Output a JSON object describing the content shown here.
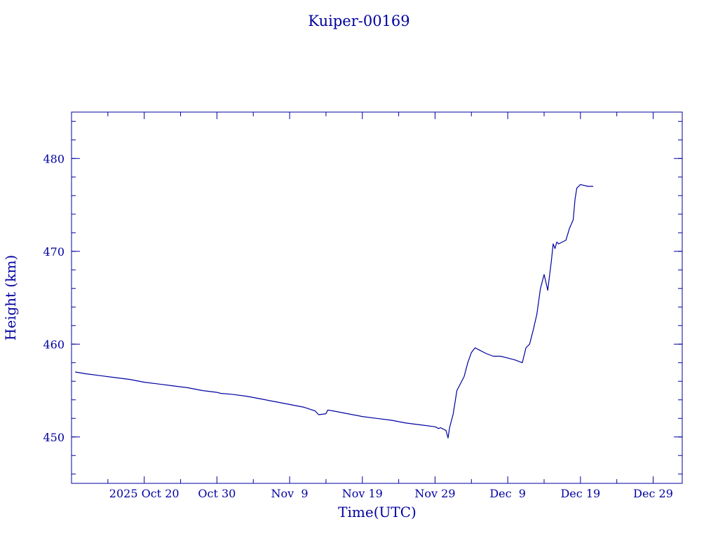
{
  "chart_data": {
    "type": "line",
    "title": "Kuiper-00169",
    "xlabel": "Time(UTC)",
    "ylabel": "Height (km)",
    "color": "#0000a0",
    "grid": false,
    "xlim_days_from_start": [
      0,
      84
    ],
    "ylim": [
      445,
      485
    ],
    "x_ticks": [
      {
        "label": "2025 Oct 20",
        "x": 10
      },
      {
        "label": "Oct 30",
        "x": 20
      },
      {
        "label": "Nov  9",
        "x": 30
      },
      {
        "label": "Nov 19",
        "x": 40
      },
      {
        "label": "Nov 29",
        "x": 50
      },
      {
        "label": "Dec  9",
        "x": 60
      },
      {
        "label": "Dec 19",
        "x": 70
      },
      {
        "label": "Dec 29",
        "x": 80
      }
    ],
    "y_ticks": [
      450,
      460,
      470,
      480
    ],
    "series": [
      {
        "x": [
          "2025-10-10T12:00",
          "2025-10-12",
          "2025-10-14",
          "2025-10-16",
          "2025-10-18",
          "2025-10-20",
          "2025-10-22",
          "2025-10-24",
          "2025-10-26",
          "2025-10-28",
          "2025-10-30",
          "2025-10-30T12:00",
          "2025-11-01",
          "2025-11-03",
          "2025-11-05",
          "2025-11-07",
          "2025-11-09",
          "2025-11-11",
          "2025-11-12T12:00",
          "2025-11-13",
          "2025-11-14",
          "2025-11-14T06:00",
          "2025-11-15",
          "2025-11-17",
          "2025-11-19",
          "2025-11-21",
          "2025-11-23",
          "2025-11-25",
          "2025-11-27",
          "2025-11-29",
          "2025-11-29T12:00",
          "2025-11-29T18:00",
          "2025-11-30",
          "2025-11-30T12:00",
          "2025-11-30T19:00",
          "2025-12-01",
          "2025-12-01T12:00",
          "2025-12-02",
          "2025-12-03",
          "2025-12-03T12:00",
          "2025-12-04",
          "2025-12-04T12:00",
          "2025-12-05",
          "2025-12-06",
          "2025-12-07",
          "2025-12-08",
          "2025-12-09",
          "2025-12-10",
          "2025-12-11",
          "2025-12-11T12:00",
          "2025-12-12",
          "2025-12-12T12:00",
          "2025-12-13",
          "2025-12-13T12:00",
          "2025-12-14",
          "2025-12-14T12:00",
          "2025-12-15",
          "2025-12-15T06:00",
          "2025-12-15T12:00",
          "2025-12-15T18:00",
          "2025-12-16",
          "2025-12-16T12:00",
          "2025-12-17",
          "2025-12-17T12:00",
          "2025-12-18",
          "2025-12-18T06:00",
          "2025-12-18T12:00",
          "2025-12-19",
          "2025-12-19T12:00",
          "2025-12-20",
          "2025-12-20T06:00",
          "2025-12-20T12:00",
          "2025-12-20T18:00",
          "2025-12-21",
          "2025-12-21T12:00",
          "2025-12-21T18:00"
        ],
        "values": [
          457.0,
          456.8,
          456.6,
          456.4,
          456.2,
          455.9,
          455.7,
          455.5,
          455.3,
          455.0,
          454.8,
          454.7,
          454.6,
          454.4,
          454.1,
          453.8,
          453.5,
          453.2,
          452.8,
          452.4,
          452.5,
          452.9,
          452.8,
          452.5,
          452.2,
          452.0,
          451.8,
          451.5,
          451.3,
          451.1,
          450.9,
          451.0,
          450.9,
          450.7,
          449.9,
          451.0,
          452.5,
          455.0,
          456.5,
          458.0,
          459.1,
          459.6,
          459.4,
          459.0,
          458.7,
          458.7,
          458.5,
          458.3,
          458.0,
          459.6,
          460.0,
          461.5,
          463.2,
          466.0,
          467.5,
          465.8,
          469.0,
          470.8,
          470.3,
          471.0,
          470.8,
          471.0,
          471.2,
          472.5,
          473.4,
          475.6,
          476.8,
          477.2,
          477.1,
          477.0,
          477.0,
          477.0,
          477.0,
          477.0,
          477.0,
          477.0
        ]
      }
    ]
  }
}
